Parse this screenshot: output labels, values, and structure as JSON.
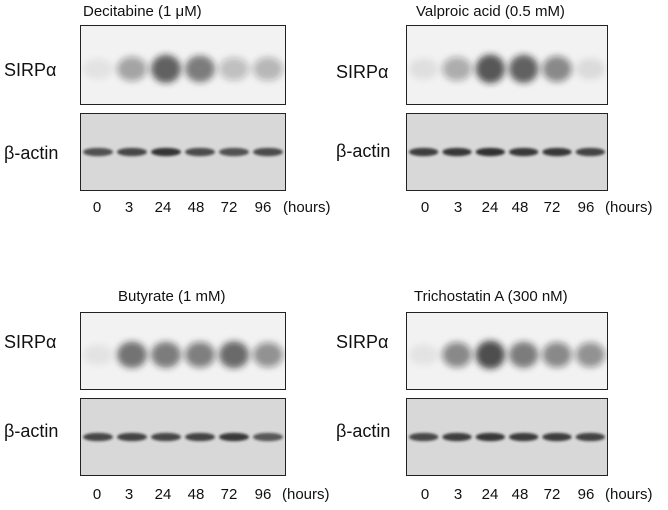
{
  "figure": {
    "row_labels": {
      "target": "SIRPα",
      "control": "β-actin"
    },
    "time_unit": "(hours)",
    "timepoints": [
      "0",
      "3",
      "24",
      "48",
      "72",
      "96"
    ],
    "panels": [
      {
        "title": "Decitabine (1 μM)",
        "target_band_intensity": [
          0.08,
          0.45,
          0.85,
          0.7,
          0.3,
          0.35
        ],
        "actin_band_intensity": [
          0.75,
          0.8,
          0.9,
          0.78,
          0.75,
          0.78
        ]
      },
      {
        "title": "Valproic acid (0.5 mM)",
        "target_band_intensity": [
          0.1,
          0.4,
          0.9,
          0.85,
          0.6,
          0.12
        ],
        "actin_band_intensity": [
          0.85,
          0.88,
          0.92,
          0.88,
          0.88,
          0.82
        ]
      },
      {
        "title": "Butyrate (1 mM)",
        "target_band_intensity": [
          0.08,
          0.75,
          0.7,
          0.65,
          0.8,
          0.55
        ],
        "actin_band_intensity": [
          0.8,
          0.82,
          0.8,
          0.82,
          0.88,
          0.72
        ]
      },
      {
        "title": "Trichostatin A (300 nM)",
        "target_band_intensity": [
          0.08,
          0.6,
          0.95,
          0.7,
          0.6,
          0.55
        ],
        "actin_band_intensity": [
          0.8,
          0.85,
          0.88,
          0.86,
          0.85,
          0.82
        ]
      }
    ]
  },
  "colors": {
    "band": "#1a1a1a",
    "membrane_target": "#f2f2f2",
    "membrane_actin": "#d8d8d8",
    "frame": "#222222"
  }
}
